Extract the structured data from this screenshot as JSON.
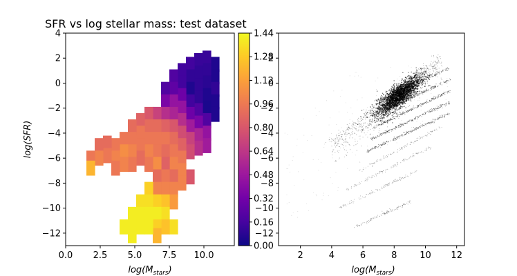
{
  "title": "SFR vs log stellar mass: test dataset",
  "chart_data": [
    {
      "type": "heatmap",
      "panel": "left",
      "title": "SFR vs log stellar mass: test dataset",
      "xlabel_base": "log(M",
      "xlabel_sub": "stars",
      "xlabel_close": ")",
      "ylabel": "log(SFR)",
      "xlim": [
        0.0,
        12.2
      ],
      "ylim": [
        -13,
        4
      ],
      "xticks": [
        0.0,
        2.5,
        5.0,
        7.5,
        10.0
      ],
      "xtick_labels": [
        "0.0",
        "2.5",
        "5.0",
        "7.5",
        "10.0"
      ],
      "yticks": [
        4,
        2,
        0,
        -2,
        -4,
        -6,
        -8,
        -10,
        -12
      ],
      "ytick_labels": [
        "4",
        "2",
        "0",
        "−2",
        "−4",
        "−6",
        "−8",
        "−10",
        "−12"
      ],
      "colormap": "plasma",
      "colorbar": {
        "range": [
          0.0,
          1.44
        ],
        "ticks": [
          0.0,
          0.16,
          0.32,
          0.48,
          0.64,
          0.8,
          0.96,
          1.12,
          1.28,
          1.44
        ],
        "tick_labels": [
          "0.00",
          "0.16",
          "0.32",
          "0.48",
          "0.64",
          "0.80",
          "0.96",
          "1.12",
          "1.28",
          "1.44"
        ],
        "stops": [
          "#0d0887",
          "#46039f",
          "#7201a8",
          "#9c179e",
          "#bd3786",
          "#d8576b",
          "#ed7953",
          "#fb9f3a",
          "#fdca26",
          "#f0f921"
        ]
      },
      "cell_size": [
        0.6,
        0.6
      ],
      "cells": [
        {
          "x": 10.8,
          "y": 1.5,
          "v": 0.05
        },
        {
          "x": 10.8,
          "y": 0.5,
          "v": 0.05
        },
        {
          "x": 10.8,
          "y": -0.5,
          "v": 0.1
        },
        {
          "x": 10.8,
          "y": -1.5,
          "v": 0.05
        },
        {
          "x": 10.8,
          "y": -2.5,
          "v": 0.05
        },
        {
          "x": 10.2,
          "y": 2.0,
          "v": 0.12
        },
        {
          "x": 10.2,
          "y": 1.0,
          "v": 0.1
        },
        {
          "x": 10.2,
          "y": 0.0,
          "v": 0.08
        },
        {
          "x": 10.2,
          "y": -1.0,
          "v": 0.05
        },
        {
          "x": 10.2,
          "y": -2.0,
          "v": 0.04
        },
        {
          "x": 10.2,
          "y": -3.0,
          "v": 0.2
        },
        {
          "x": 10.2,
          "y": -4.0,
          "v": 0.45
        },
        {
          "x": 10.2,
          "y": -5.0,
          "v": 0.5
        },
        {
          "x": 9.6,
          "y": 1.8,
          "v": 0.12
        },
        {
          "x": 9.6,
          "y": 0.8,
          "v": 0.1
        },
        {
          "x": 9.6,
          "y": -0.2,
          "v": 0.1
        },
        {
          "x": 9.6,
          "y": -1.2,
          "v": 0.1
        },
        {
          "x": 9.6,
          "y": -2.2,
          "v": 0.2
        },
        {
          "x": 9.6,
          "y": -3.2,
          "v": 0.35
        },
        {
          "x": 9.6,
          "y": -4.2,
          "v": 0.55
        },
        {
          "x": 9.6,
          "y": -5.2,
          "v": 0.6
        },
        {
          "x": 9.0,
          "y": 1.5,
          "v": 0.15
        },
        {
          "x": 9.0,
          "y": 0.5,
          "v": 0.1
        },
        {
          "x": 9.0,
          "y": -0.5,
          "v": 0.05
        },
        {
          "x": 9.0,
          "y": -1.5,
          "v": 0.15
        },
        {
          "x": 9.0,
          "y": -2.5,
          "v": 0.3
        },
        {
          "x": 9.0,
          "y": -3.5,
          "v": 0.5
        },
        {
          "x": 9.0,
          "y": -4.5,
          "v": 0.7
        },
        {
          "x": 9.0,
          "y": -5.5,
          "v": 0.75
        },
        {
          "x": 9.0,
          "y": -7.5,
          "v": 0.8
        },
        {
          "x": 8.4,
          "y": 1.0,
          "v": 0.15
        },
        {
          "x": 8.4,
          "y": 0.0,
          "v": 0.15
        },
        {
          "x": 8.4,
          "y": -1.0,
          "v": 0.3
        },
        {
          "x": 8.4,
          "y": -2.0,
          "v": 0.45
        },
        {
          "x": 8.4,
          "y": -3.0,
          "v": 0.6
        },
        {
          "x": 8.4,
          "y": -4.0,
          "v": 0.75
        },
        {
          "x": 8.4,
          "y": -5.0,
          "v": 0.85
        },
        {
          "x": 8.4,
          "y": -6.0,
          "v": 0.95
        },
        {
          "x": 8.4,
          "y": -7.0,
          "v": 1.0
        },
        {
          "x": 8.4,
          "y": -8.0,
          "v": 1.0
        },
        {
          "x": 7.8,
          "y": 0.5,
          "v": 0.2
        },
        {
          "x": 7.8,
          "y": -0.5,
          "v": 0.25
        },
        {
          "x": 7.8,
          "y": -1.5,
          "v": 0.45
        },
        {
          "x": 7.8,
          "y": -2.5,
          "v": 0.55
        },
        {
          "x": 7.8,
          "y": -3.5,
          "v": 0.8
        },
        {
          "x": 7.8,
          "y": -4.5,
          "v": 0.9
        },
        {
          "x": 7.8,
          "y": -5.5,
          "v": 0.95
        },
        {
          "x": 7.8,
          "y": -6.5,
          "v": 1.0
        },
        {
          "x": 7.8,
          "y": -7.5,
          "v": 0.9
        },
        {
          "x": 7.8,
          "y": -8.5,
          "v": 1.0
        },
        {
          "x": 7.8,
          "y": -9.5,
          "v": 1.1
        },
        {
          "x": 7.8,
          "y": -11.5,
          "v": 1.35
        },
        {
          "x": 7.2,
          "y": -0.5,
          "v": 0.2
        },
        {
          "x": 7.2,
          "y": -1.5,
          "v": 0.35
        },
        {
          "x": 7.2,
          "y": -2.5,
          "v": 0.6
        },
        {
          "x": 7.2,
          "y": -3.5,
          "v": 0.85
        },
        {
          "x": 7.2,
          "y": -4.5,
          "v": 0.95
        },
        {
          "x": 7.2,
          "y": -5.5,
          "v": 0.9
        },
        {
          "x": 7.2,
          "y": -6.5,
          "v": 0.85
        },
        {
          "x": 7.2,
          "y": -7.5,
          "v": 0.95
        },
        {
          "x": 7.2,
          "y": -8.5,
          "v": 1.0
        },
        {
          "x": 7.2,
          "y": -9.5,
          "v": 1.25
        },
        {
          "x": 7.2,
          "y": -10.5,
          "v": 1.35
        },
        {
          "x": 7.2,
          "y": -11.5,
          "v": 1.25
        },
        {
          "x": 6.6,
          "y": -2.5,
          "v": 0.7
        },
        {
          "x": 6.6,
          "y": -3.5,
          "v": 0.9
        },
        {
          "x": 6.6,
          "y": -4.5,
          "v": 0.95
        },
        {
          "x": 6.6,
          "y": -5.5,
          "v": 0.95
        },
        {
          "x": 6.6,
          "y": -6.5,
          "v": 1.05
        },
        {
          "x": 6.6,
          "y": -7.5,
          "v": 0.9
        },
        {
          "x": 6.6,
          "y": -8.5,
          "v": 1.0
        },
        {
          "x": 6.6,
          "y": -9.5,
          "v": 1.3
        },
        {
          "x": 6.6,
          "y": -10.5,
          "v": 1.4
        },
        {
          "x": 6.6,
          "y": -11.5,
          "v": 1.3
        },
        {
          "x": 6.6,
          "y": -12.2,
          "v": 1.2
        },
        {
          "x": 6.0,
          "y": -2.5,
          "v": 0.8
        },
        {
          "x": 6.0,
          "y": -3.5,
          "v": 0.9
        },
        {
          "x": 6.0,
          "y": -4.5,
          "v": 0.95
        },
        {
          "x": 6.0,
          "y": -5.5,
          "v": 1.0
        },
        {
          "x": 6.0,
          "y": -6.5,
          "v": 0.95
        },
        {
          "x": 6.0,
          "y": -8.5,
          "v": 1.3
        },
        {
          "x": 6.0,
          "y": -9.5,
          "v": 1.35
        },
        {
          "x": 6.0,
          "y": -10.5,
          "v": 1.4
        },
        {
          "x": 6.0,
          "y": -11.5,
          "v": 1.4
        },
        {
          "x": 5.4,
          "y": -3.0,
          "v": 0.85
        },
        {
          "x": 5.4,
          "y": -4.0,
          "v": 0.95
        },
        {
          "x": 5.4,
          "y": -5.0,
          "v": 0.95
        },
        {
          "x": 5.4,
          "y": -6.0,
          "v": 0.9
        },
        {
          "x": 5.4,
          "y": -9.5,
          "v": 1.35
        },
        {
          "x": 5.4,
          "y": -10.5,
          "v": 1.4
        },
        {
          "x": 5.4,
          "y": -11.5,
          "v": 1.4
        },
        {
          "x": 4.8,
          "y": -3.5,
          "v": 0.9
        },
        {
          "x": 4.8,
          "y": -4.5,
          "v": 0.95
        },
        {
          "x": 4.8,
          "y": -5.5,
          "v": 1.0
        },
        {
          "x": 4.8,
          "y": -6.5,
          "v": 0.95
        },
        {
          "x": 4.8,
          "y": -10.5,
          "v": 1.4
        },
        {
          "x": 4.8,
          "y": -11.5,
          "v": 1.4
        },
        {
          "x": 4.8,
          "y": -12.2,
          "v": 1.4
        },
        {
          "x": 4.2,
          "y": -4.5,
          "v": 0.95
        },
        {
          "x": 4.2,
          "y": -5.5,
          "v": 1.05
        },
        {
          "x": 4.2,
          "y": -6.5,
          "v": 1.0
        },
        {
          "x": 4.2,
          "y": -11.5,
          "v": 1.4
        },
        {
          "x": 3.6,
          "y": -5.0,
          "v": 0.95
        },
        {
          "x": 3.6,
          "y": -6.0,
          "v": 1.0
        },
        {
          "x": 3.6,
          "y": -6.8,
          "v": 0.95
        },
        {
          "x": 3.0,
          "y": -4.8,
          "v": 0.9
        },
        {
          "x": 3.0,
          "y": -5.8,
          "v": 0.95
        },
        {
          "x": 2.4,
          "y": -5.0,
          "v": 0.9
        },
        {
          "x": 2.4,
          "y": -6.0,
          "v": 1.0
        },
        {
          "x": 1.8,
          "y": -6.0,
          "v": 0.95
        },
        {
          "x": 1.8,
          "y": -6.8,
          "v": 1.2
        }
      ]
    },
    {
      "type": "scatter",
      "panel": "right",
      "xlabel_base": "log(M",
      "xlabel_sub": "stars",
      "xlabel_close": ")",
      "xlim": [
        0.6,
        12.5
      ],
      "ylim": [
        -13,
        4
      ],
      "xticks": [
        2,
        4,
        6,
        8,
        10,
        12
      ],
      "xtick_labels": [
        "2",
        "4",
        "6",
        "8",
        "10",
        "12"
      ],
      "yticks": [
        4,
        2,
        0,
        -2,
        -4,
        -6,
        -8,
        -10,
        -12
      ],
      "ytick_labels": [
        "4",
        "2",
        "0",
        "−2",
        "−4",
        "−6",
        "−8",
        "−10",
        "−12"
      ],
      "marker_color": "#000000",
      "main_cluster": {
        "center": [
          8.3,
          -1.0
        ],
        "spread": [
          0.7,
          0.45
        ],
        "density": "high"
      },
      "upper_envelope": {
        "from": [
          4.0,
          -4.5
        ],
        "to": [
          11.0,
          2.5
        ]
      },
      "diagonal_streaks": [
        {
          "from": [
            6.8,
            -1.5
          ],
          "to": [
            11.5,
            1.2
          ]
        },
        {
          "from": [
            6.8,
            -2.5
          ],
          "to": [
            11.6,
            0.3
          ]
        },
        {
          "from": [
            6.8,
            -3.5
          ],
          "to": [
            11.6,
            -0.6
          ]
        },
        {
          "from": [
            6.5,
            -4.5
          ],
          "to": [
            11.6,
            -1.5
          ]
        },
        {
          "from": [
            6.2,
            -5.5
          ],
          "to": [
            11.6,
            -2.4
          ]
        },
        {
          "from": [
            5.8,
            -7.0
          ],
          "to": [
            11.0,
            -3.5
          ]
        },
        {
          "from": [
            5.0,
            -8.5
          ],
          "to": [
            10.5,
            -5.0
          ]
        },
        {
          "from": [
            4.5,
            -10.0
          ],
          "to": [
            9.5,
            -7.0
          ]
        },
        {
          "from": [
            5.5,
            -11.5
          ],
          "to": [
            9.0,
            -9.5
          ]
        }
      ]
    }
  ]
}
